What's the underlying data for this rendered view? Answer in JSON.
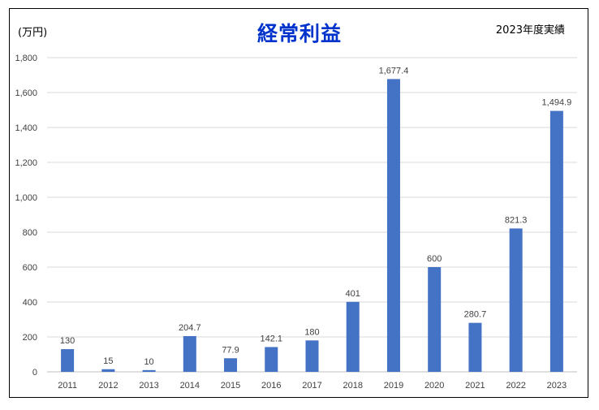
{
  "chart_data": {
    "type": "bar",
    "title": "経常利益",
    "unit_label": "(万円)",
    "note": "2023年度実績",
    "categories": [
      "2011",
      "2012",
      "2013",
      "2014",
      "2015",
      "2016",
      "2017",
      "2018",
      "2019",
      "2020",
      "2021",
      "2022",
      "2023"
    ],
    "values": [
      130,
      15,
      10,
      204.7,
      77.9,
      142.1,
      180,
      401,
      1677.4,
      600,
      280.7,
      821.3,
      1494.9
    ],
    "data_labels": [
      "130",
      "15",
      "10",
      "204.7",
      "77.9",
      "142.1",
      "180",
      "401",
      "1,677.4",
      "600",
      "280.7",
      "821.3",
      "1,494.9"
    ],
    "y_ticks": [
      0,
      200,
      400,
      600,
      800,
      1000,
      1200,
      1400,
      1600,
      1800
    ],
    "y_tick_labels": [
      "0",
      "200",
      "400",
      "600",
      "800",
      "1,000",
      "1,200",
      "1,400",
      "1,600",
      "1,800"
    ],
    "ylim": [
      0,
      1800
    ],
    "grid": true,
    "legend": "none",
    "bar_color": "#4472c4",
    "grid_color": "#d9d9d9"
  }
}
